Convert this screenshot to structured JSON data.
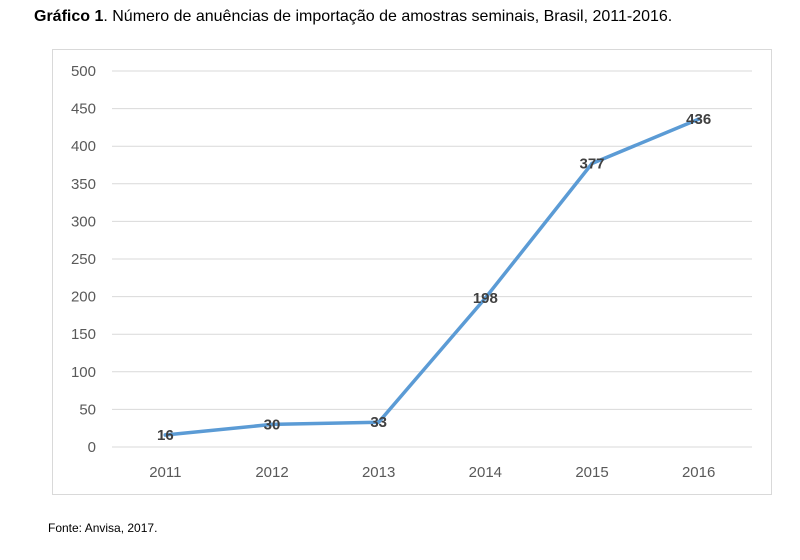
{
  "caption": {
    "prefix": "Gráfico 1",
    "text": ". Número de anuências de importação de amostras seminais, Brasil, 2011-2016."
  },
  "source": "Fonte: Anvisa, 2017.",
  "chart_data": {
    "type": "line",
    "title": "",
    "xlabel": "",
    "ylabel": "",
    "categories": [
      "2011",
      "2012",
      "2013",
      "2014",
      "2015",
      "2016"
    ],
    "series": [
      {
        "values": [
          16,
          30,
          33,
          198,
          377,
          436
        ]
      }
    ],
    "ylim": [
      0,
      500
    ],
    "yticks": [
      0,
      50,
      100,
      150,
      200,
      250,
      300,
      350,
      400,
      450,
      500
    ],
    "grid": true,
    "legend": "none",
    "data_labels": true,
    "colors": {
      "line": "#5b9bd5",
      "grid": "#d9d9d9",
      "tick_text": "#595959",
      "label_text": "#404040"
    }
  }
}
